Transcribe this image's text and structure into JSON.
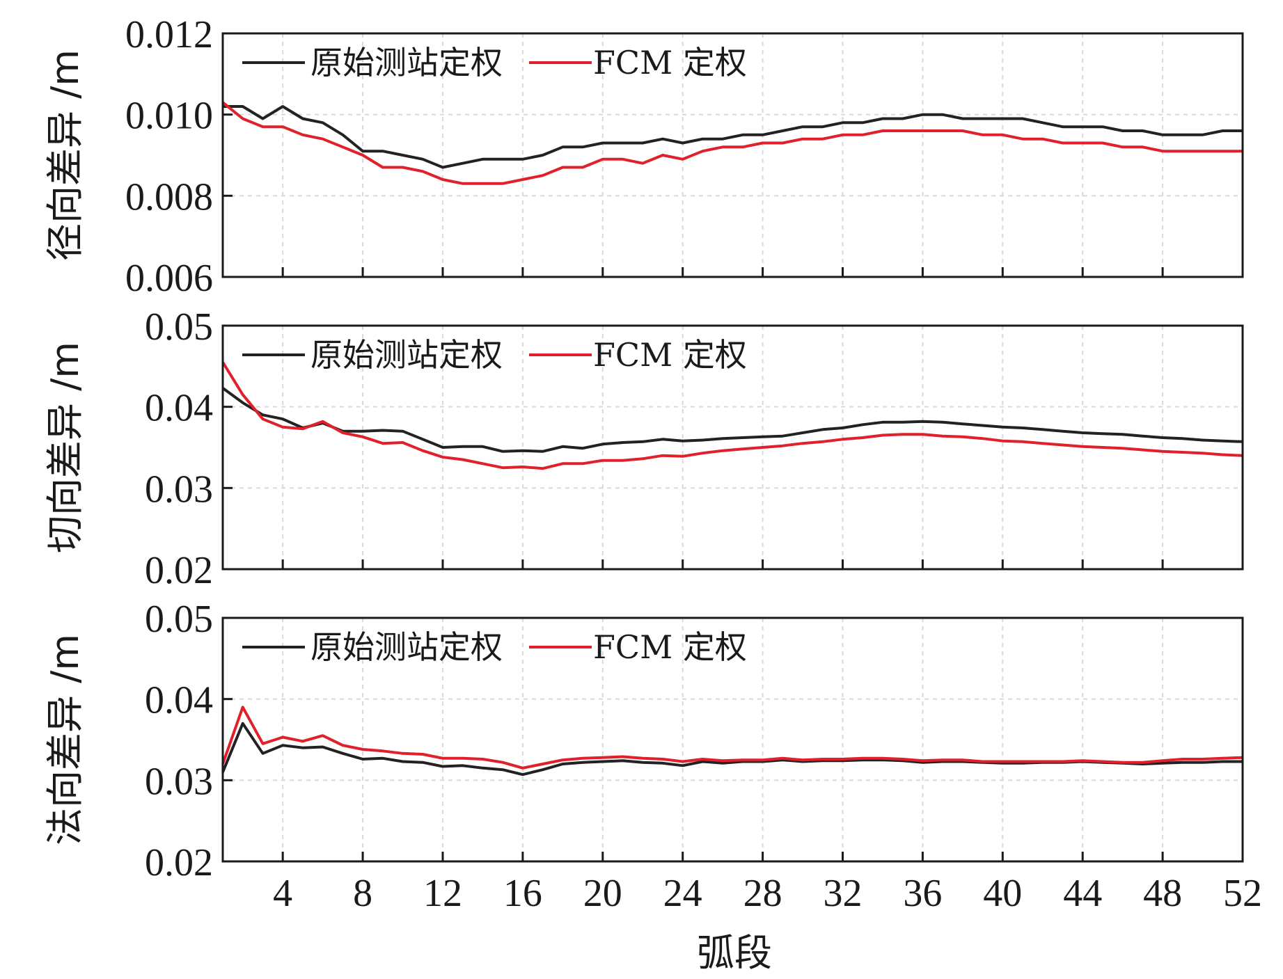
{
  "xlabel": "弧段",
  "series_colors": {
    "original": "#222222",
    "fcm": "#e0202a"
  },
  "chart_data": [
    {
      "type": "line",
      "ylabel": "径向差异 /m",
      "xlim": [
        1,
        52
      ],
      "ylim": [
        0.006,
        0.012
      ],
      "yticks": [
        "0.006",
        "0.008",
        "0.010",
        "0.012"
      ],
      "xticks": [
        "4",
        "8",
        "12",
        "16",
        "20",
        "24",
        "28",
        "32",
        "36",
        "40",
        "44",
        "48",
        "52"
      ],
      "grid": true,
      "legend_position": "top-left",
      "x": [
        1,
        2,
        3,
        4,
        5,
        6,
        7,
        8,
        9,
        10,
        11,
        12,
        13,
        14,
        15,
        16,
        17,
        18,
        19,
        20,
        21,
        22,
        23,
        24,
        25,
        26,
        27,
        28,
        29,
        30,
        31,
        32,
        33,
        34,
        35,
        36,
        37,
        38,
        39,
        40,
        41,
        42,
        43,
        44,
        45,
        46,
        47,
        48,
        49,
        50,
        51,
        52
      ],
      "series": [
        {
          "name": "原始测站定权",
          "values": [
            0.0102,
            0.0102,
            0.0099,
            0.0102,
            0.0099,
            0.0098,
            0.0095,
            0.0091,
            0.0091,
            0.009,
            0.0089,
            0.0087,
            0.0088,
            0.0089,
            0.0089,
            0.0089,
            0.009,
            0.0092,
            0.0092,
            0.0093,
            0.0093,
            0.0093,
            0.0094,
            0.0093,
            0.0094,
            0.0094,
            0.0095,
            0.0095,
            0.0096,
            0.0097,
            0.0097,
            0.0098,
            0.0098,
            0.0099,
            0.0099,
            0.01,
            0.01,
            0.0099,
            0.0099,
            0.0099,
            0.0099,
            0.0098,
            0.0097,
            0.0097,
            0.0097,
            0.0096,
            0.0096,
            0.0095,
            0.0095,
            0.0095,
            0.0096,
            0.0096
          ]
        },
        {
          "name": "FCM 定权",
          "values": [
            0.0103,
            0.0099,
            0.0097,
            0.0097,
            0.0095,
            0.0094,
            0.0092,
            0.009,
            0.0087,
            0.0087,
            0.0086,
            0.0084,
            0.0083,
            0.0083,
            0.0083,
            0.0084,
            0.0085,
            0.0087,
            0.0087,
            0.0089,
            0.0089,
            0.0088,
            0.009,
            0.0089,
            0.0091,
            0.0092,
            0.0092,
            0.0093,
            0.0093,
            0.0094,
            0.0094,
            0.0095,
            0.0095,
            0.0096,
            0.0096,
            0.0096,
            0.0096,
            0.0096,
            0.0095,
            0.0095,
            0.0094,
            0.0094,
            0.0093,
            0.0093,
            0.0093,
            0.0092,
            0.0092,
            0.0091,
            0.0091,
            0.0091,
            0.0091,
            0.0091
          ]
        }
      ]
    },
    {
      "type": "line",
      "ylabel": "切向差异 /m",
      "xlim": [
        1,
        52
      ],
      "ylim": [
        0.02,
        0.05
      ],
      "yticks": [
        "0.02",
        "0.03",
        "0.04",
        "0.05"
      ],
      "xticks": [
        "4",
        "8",
        "12",
        "16",
        "20",
        "24",
        "28",
        "32",
        "36",
        "40",
        "44",
        "48",
        "52"
      ],
      "grid": true,
      "legend_position": "top-left",
      "x": [
        1,
        2,
        3,
        4,
        5,
        6,
        7,
        8,
        9,
        10,
        11,
        12,
        13,
        14,
        15,
        16,
        17,
        18,
        19,
        20,
        21,
        22,
        23,
        24,
        25,
        26,
        27,
        28,
        29,
        30,
        31,
        32,
        33,
        34,
        35,
        36,
        37,
        38,
        39,
        40,
        41,
        42,
        43,
        44,
        45,
        46,
        47,
        48,
        49,
        50,
        51,
        52
      ],
      "series": [
        {
          "name": "原始测站定权",
          "values": [
            0.0423,
            0.0405,
            0.039,
            0.0385,
            0.0374,
            0.038,
            0.037,
            0.037,
            0.0371,
            0.037,
            0.036,
            0.035,
            0.0351,
            0.0351,
            0.0345,
            0.0346,
            0.0345,
            0.0351,
            0.0349,
            0.0354,
            0.0356,
            0.0357,
            0.036,
            0.0358,
            0.0359,
            0.0361,
            0.0362,
            0.0363,
            0.0364,
            0.0368,
            0.0372,
            0.0374,
            0.0378,
            0.0381,
            0.0381,
            0.0382,
            0.0381,
            0.0379,
            0.0377,
            0.0375,
            0.0374,
            0.0372,
            0.037,
            0.0368,
            0.0367,
            0.0366,
            0.0364,
            0.0362,
            0.0361,
            0.0359,
            0.0358,
            0.0357
          ]
        },
        {
          "name": "FCM 定权",
          "values": [
            0.0455,
            0.0415,
            0.0385,
            0.0375,
            0.0373,
            0.0382,
            0.0368,
            0.0363,
            0.0355,
            0.0356,
            0.0346,
            0.0338,
            0.0335,
            0.033,
            0.0325,
            0.0326,
            0.0324,
            0.033,
            0.033,
            0.0334,
            0.0334,
            0.0336,
            0.034,
            0.0339,
            0.0343,
            0.0346,
            0.0348,
            0.035,
            0.0352,
            0.0355,
            0.0357,
            0.036,
            0.0362,
            0.0365,
            0.0366,
            0.0366,
            0.0364,
            0.0363,
            0.0361,
            0.0358,
            0.0357,
            0.0355,
            0.0353,
            0.0351,
            0.035,
            0.0349,
            0.0347,
            0.0345,
            0.0344,
            0.0343,
            0.0341,
            0.034
          ]
        }
      ]
    },
    {
      "type": "line",
      "ylabel": "法向差异 /m",
      "xlim": [
        1,
        52
      ],
      "ylim": [
        0.02,
        0.05
      ],
      "yticks": [
        "0.02",
        "0.03",
        "0.04",
        "0.05"
      ],
      "xticks": [
        "4",
        "8",
        "12",
        "16",
        "20",
        "24",
        "28",
        "32",
        "36",
        "40",
        "44",
        "48",
        "52"
      ],
      "grid": true,
      "legend_position": "top-left",
      "x": [
        1,
        2,
        3,
        4,
        5,
        6,
        7,
        8,
        9,
        10,
        11,
        12,
        13,
        14,
        15,
        16,
        17,
        18,
        19,
        20,
        21,
        22,
        23,
        24,
        25,
        26,
        27,
        28,
        29,
        30,
        31,
        32,
        33,
        34,
        35,
        36,
        37,
        38,
        39,
        40,
        41,
        42,
        43,
        44,
        45,
        46,
        47,
        48,
        49,
        50,
        51,
        52
      ],
      "series": [
        {
          "name": "原始测站定权",
          "values": [
            0.031,
            0.037,
            0.0333,
            0.0343,
            0.034,
            0.0341,
            0.0333,
            0.0326,
            0.0327,
            0.0323,
            0.0322,
            0.0317,
            0.0318,
            0.0315,
            0.0313,
            0.0307,
            0.0313,
            0.032,
            0.0322,
            0.0323,
            0.0324,
            0.0322,
            0.0321,
            0.0318,
            0.0323,
            0.0321,
            0.0323,
            0.0323,
            0.0325,
            0.0323,
            0.0324,
            0.0324,
            0.0325,
            0.0325,
            0.0324,
            0.0322,
            0.0323,
            0.0323,
            0.0322,
            0.0321,
            0.0321,
            0.0322,
            0.0322,
            0.0323,
            0.0322,
            0.0321,
            0.032,
            0.0321,
            0.0322,
            0.0322,
            0.0323,
            0.0323
          ]
        },
        {
          "name": "FCM 定权",
          "values": [
            0.032,
            0.039,
            0.0345,
            0.0353,
            0.0348,
            0.0355,
            0.0343,
            0.0338,
            0.0336,
            0.0333,
            0.0332,
            0.0327,
            0.0327,
            0.0326,
            0.0322,
            0.0315,
            0.032,
            0.0325,
            0.0327,
            0.0328,
            0.0329,
            0.0327,
            0.0326,
            0.0323,
            0.0326,
            0.0324,
            0.0325,
            0.0325,
            0.0327,
            0.0325,
            0.0326,
            0.0326,
            0.0327,
            0.0327,
            0.0326,
            0.0324,
            0.0325,
            0.0325,
            0.0323,
            0.0323,
            0.0323,
            0.0323,
            0.0323,
            0.0324,
            0.0323,
            0.0322,
            0.0322,
            0.0324,
            0.0326,
            0.0326,
            0.0327,
            0.0328
          ]
        }
      ]
    }
  ]
}
